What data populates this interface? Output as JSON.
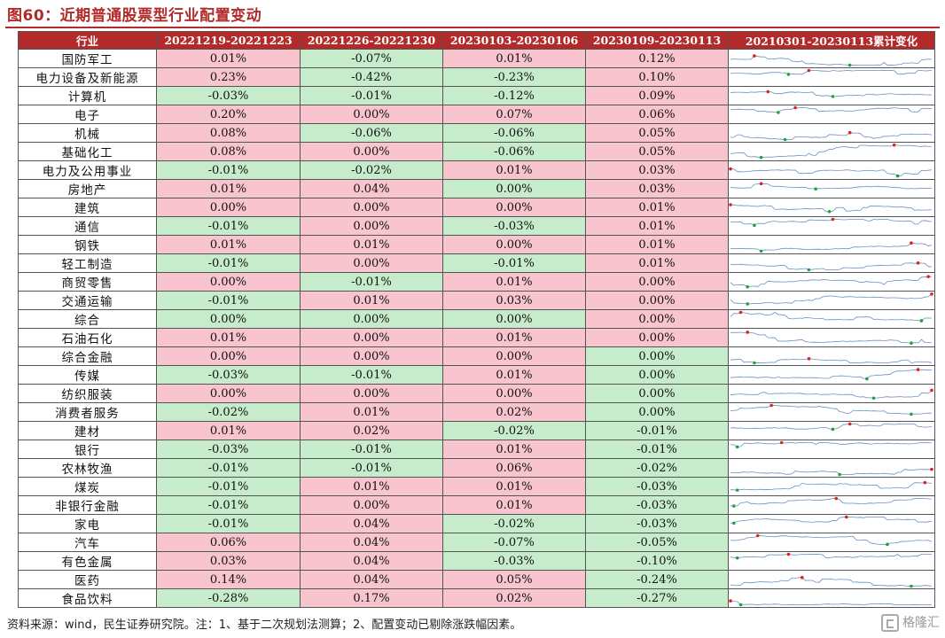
{
  "title": "图60：近期普通股票型行业配置变动",
  "footer": "资料来源：wind，民生证券研究院。注：1、基于二次规划法测算；2、配置变动已剔除涨跌幅因素。",
  "watermark": "格隆汇",
  "colors": {
    "header": "#b22a2a",
    "positive": "#f8c4cd",
    "negative": "#c6eccc",
    "spark_line": "#6a8fc4",
    "spark_max": "#e02020",
    "spark_min": "#20a040"
  },
  "headers": [
    "行业",
    "20221219-20221223",
    "20221226-20221230",
    "20230103-20230106",
    "20230109-20230113",
    "20210301-20230113累计变化"
  ],
  "rows": [
    {
      "industry": "国防军工",
      "values": [
        "0.01%",
        "-0.07%",
        "0.01%",
        "0.12%"
      ]
    },
    {
      "industry": "电力设备及新能源",
      "values": [
        "0.23%",
        "-0.42%",
        "-0.23%",
        "0.10%"
      ]
    },
    {
      "industry": "计算机",
      "values": [
        "-0.03%",
        "-0.01%",
        "-0.12%",
        "0.09%"
      ]
    },
    {
      "industry": "电子",
      "values": [
        "0.20%",
        "0.00%",
        "0.07%",
        "0.06%"
      ]
    },
    {
      "industry": "机械",
      "values": [
        "0.08%",
        "-0.06%",
        "-0.06%",
        "0.05%"
      ]
    },
    {
      "industry": "基础化工",
      "values": [
        "0.08%",
        "0.00%",
        "-0.06%",
        "0.05%"
      ]
    },
    {
      "industry": "电力及公用事业",
      "values": [
        "-0.01%",
        "-0.02%",
        "0.01%",
        "0.03%"
      ]
    },
    {
      "industry": "房地产",
      "values": [
        "0.01%",
        "0.04%",
        "0.00%",
        "0.03%"
      ]
    },
    {
      "industry": "建筑",
      "values": [
        "0.00%",
        "0.00%",
        "0.00%",
        "0.01%"
      ]
    },
    {
      "industry": "通信",
      "values": [
        "-0.01%",
        "0.00%",
        "-0.03%",
        "0.01%"
      ]
    },
    {
      "industry": "钢铁",
      "values": [
        "0.01%",
        "0.01%",
        "0.00%",
        "0.01%"
      ]
    },
    {
      "industry": "轻工制造",
      "values": [
        "-0.01%",
        "0.00%",
        "-0.01%",
        "0.01%"
      ]
    },
    {
      "industry": "商贸零售",
      "values": [
        "0.00%",
        "-0.01%",
        "0.01%",
        "0.00%"
      ]
    },
    {
      "industry": "交通运输",
      "values": [
        "-0.01%",
        "0.01%",
        "0.03%",
        "0.00%"
      ]
    },
    {
      "industry": "综合",
      "values": [
        "0.00%",
        "0.00%",
        "0.00%",
        "0.00%"
      ]
    },
    {
      "industry": "石油石化",
      "values": [
        "0.01%",
        "0.00%",
        "0.01%",
        "0.00%"
      ]
    },
    {
      "industry": "综合金融",
      "values": [
        "0.00%",
        "0.00%",
        "0.00%",
        "0.00%"
      ]
    },
    {
      "industry": "传媒",
      "values": [
        "-0.03%",
        "-0.01%",
        "0.01%",
        "0.00%"
      ]
    },
    {
      "industry": "纺织服装",
      "values": [
        "0.00%",
        "0.00%",
        "0.00%",
        "0.00%"
      ]
    },
    {
      "industry": "消费者服务",
      "values": [
        "-0.02%",
        "0.01%",
        "0.02%",
        "0.00%"
      ]
    },
    {
      "industry": "建材",
      "values": [
        "0.01%",
        "0.02%",
        "-0.02%",
        "-0.01%"
      ]
    },
    {
      "industry": "银行",
      "values": [
        "-0.03%",
        "-0.01%",
        "0.01%",
        "-0.01%"
      ]
    },
    {
      "industry": "农林牧渔",
      "values": [
        "-0.01%",
        "-0.01%",
        "0.06%",
        "-0.02%"
      ]
    },
    {
      "industry": "煤炭",
      "values": [
        "-0.01%",
        "0.01%",
        "0.01%",
        "-0.03%"
      ]
    },
    {
      "industry": "非银行金融",
      "values": [
        "-0.01%",
        "0.00%",
        "0.01%",
        "-0.03%"
      ]
    },
    {
      "industry": "家电",
      "values": [
        "-0.01%",
        "0.04%",
        "-0.02%",
        "-0.03%"
      ]
    },
    {
      "industry": "汽车",
      "values": [
        "0.06%",
        "0.04%",
        "-0.07%",
        "-0.05%"
      ]
    },
    {
      "industry": "有色金属",
      "values": [
        "0.03%",
        "0.04%",
        "-0.03%",
        "-0.10%"
      ]
    },
    {
      "industry": "医药",
      "values": [
        "0.14%",
        "0.04%",
        "0.05%",
        "-0.24%"
      ]
    },
    {
      "industry": "食品饮料",
      "values": [
        "-0.28%",
        "0.17%",
        "0.02%",
        "-0.27%"
      ]
    }
  ],
  "color_map": [
    [
      "pos",
      "neg",
      "pos",
      "pos"
    ],
    [
      "pos",
      "neg",
      "neg",
      "pos"
    ],
    [
      "neg",
      "neg",
      "neg",
      "pos"
    ],
    [
      "pos",
      "pos",
      "pos",
      "pos"
    ],
    [
      "pos",
      "neg",
      "neg",
      "pos"
    ],
    [
      "pos",
      "pos",
      "neg",
      "pos"
    ],
    [
      "neg",
      "neg",
      "pos",
      "pos"
    ],
    [
      "pos",
      "pos",
      "neg",
      "pos"
    ],
    [
      "pos",
      "pos",
      "pos",
      "pos"
    ],
    [
      "neg",
      "pos",
      "neg",
      "pos"
    ],
    [
      "pos",
      "pos",
      "pos",
      "pos"
    ],
    [
      "neg",
      "pos",
      "neg",
      "pos"
    ],
    [
      "pos",
      "neg",
      "pos",
      "pos"
    ],
    [
      "neg",
      "pos",
      "pos",
      "pos"
    ],
    [
      "neg",
      "neg",
      "neg",
      "pos"
    ],
    [
      "pos",
      "pos",
      "pos",
      "pos"
    ],
    [
      "pos",
      "pos",
      "pos",
      "neg"
    ],
    [
      "neg",
      "neg",
      "pos",
      "neg"
    ],
    [
      "pos",
      "pos",
      "pos",
      "neg"
    ],
    [
      "neg",
      "pos",
      "pos",
      "neg"
    ],
    [
      "pos",
      "pos",
      "neg",
      "neg"
    ],
    [
      "neg",
      "neg",
      "pos",
      "neg"
    ],
    [
      "neg",
      "neg",
      "pos",
      "neg"
    ],
    [
      "neg",
      "pos",
      "pos",
      "neg"
    ],
    [
      "neg",
      "pos",
      "pos",
      "neg"
    ],
    [
      "neg",
      "pos",
      "neg",
      "neg"
    ],
    [
      "pos",
      "pos",
      "neg",
      "neg"
    ],
    [
      "pos",
      "pos",
      "neg",
      "neg"
    ],
    [
      "pos",
      "pos",
      "pos",
      "neg"
    ],
    [
      "neg",
      "pos",
      "pos",
      "neg"
    ]
  ]
}
